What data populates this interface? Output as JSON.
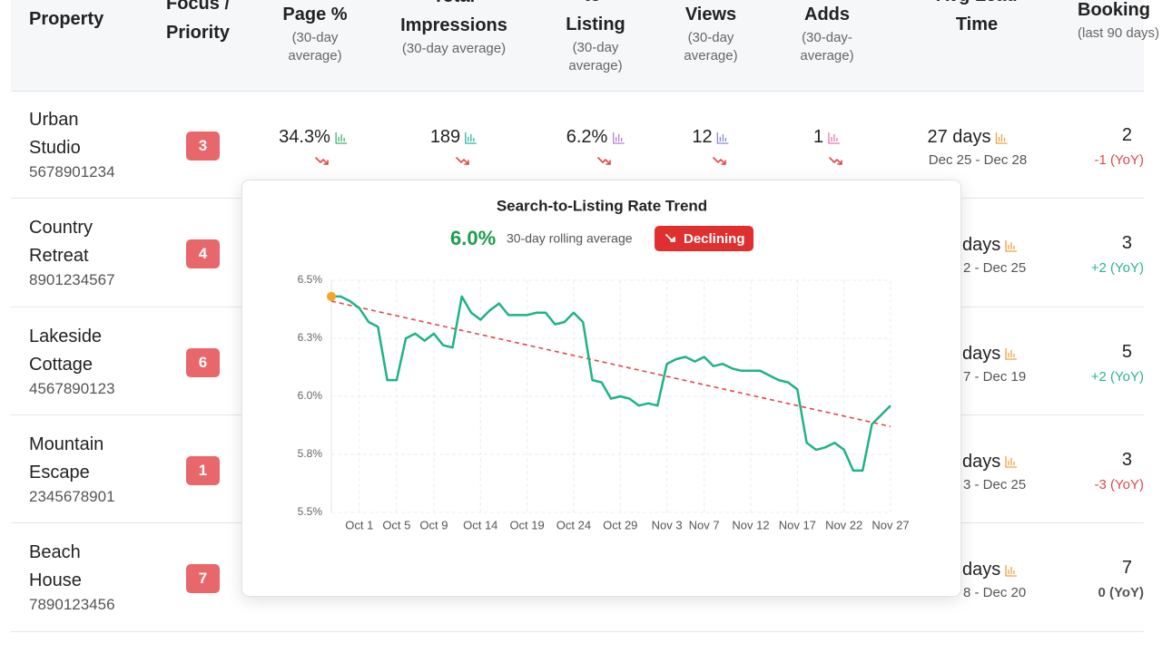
{
  "table": {
    "columns": [
      {
        "title": "Property"
      },
      {
        "title": "Focus / Priority"
      },
      {
        "title": "Page %",
        "sub": "(30-day average)"
      },
      {
        "title": "Total Impressions",
        "sub": "(30-day average)"
      },
      {
        "title": "to-Listing",
        "sub": "(30-day average)"
      },
      {
        "title": "Views",
        "sub": "(30-day average)"
      },
      {
        "title": "Adds",
        "sub": "(30-day-average)"
      },
      {
        "title": "Avg Lead Time"
      },
      {
        "title": "Booking",
        "sub": "(last 90 days)"
      }
    ],
    "rows": [
      {
        "name": "Urban Studio",
        "id": "5678901234",
        "priority": "3",
        "page": "34.3%",
        "impressions": "189",
        "listing": "6.2%",
        "views": "12",
        "adds": "1",
        "lead": "27 days",
        "lead_dates": "Dec 25 - Dec 28",
        "bookings": "2",
        "yoy": "-1 (YoY)",
        "yoy_color": "#e04848"
      },
      {
        "name": "Country Retreat",
        "id": "8901234567",
        "priority": "4",
        "lead": "days",
        "lead_dates": "2 - Dec 25",
        "bookings": "3",
        "yoy": "+2 (YoY)",
        "yoy_color": "#2bb58a"
      },
      {
        "name": "Lakeside Cottage",
        "id": "4567890123",
        "priority": "6",
        "lead": "days",
        "lead_dates": "7 - Dec 19",
        "bookings": "5",
        "yoy": "+2 (YoY)",
        "yoy_color": "#2bb58a"
      },
      {
        "name": "Mountain Escape",
        "id": "2345678901",
        "priority": "1",
        "lead": "days",
        "lead_dates": "3 - Dec 25",
        "bookings": "3",
        "yoy": "-3 (YoY)",
        "yoy_color": "#e04848"
      },
      {
        "name": "Beach House",
        "id": "7890123456",
        "priority": "7",
        "lead": "days",
        "lead_dates": "8 - Dec 20",
        "bookings": "7",
        "yoy": "0 (YoY)",
        "yoy_color": "#555555"
      }
    ]
  },
  "chart_data": {
    "type": "line",
    "title": "Search-to-Listing Rate Trend",
    "headline_value": "6.0%",
    "headline_note": "30-day rolling average",
    "status": "Declining",
    "categories": [
      null,
      null,
      null,
      "Oct 1",
      null,
      null,
      null,
      "Oct 5",
      null,
      null,
      null,
      "Oct 9",
      null,
      null,
      null,
      null,
      "Oct 14",
      null,
      null,
      null,
      null,
      "Oct 19",
      null,
      null,
      null,
      null,
      "Oct 24",
      null,
      null,
      null,
      null,
      "Oct 29",
      null,
      null,
      null,
      null,
      "Nov 3",
      null,
      null,
      null,
      "Nov 7",
      null,
      null,
      null,
      null,
      "Nov 12",
      null,
      null,
      null,
      null,
      "Nov 17",
      null,
      null,
      null,
      null,
      "Nov 22",
      null,
      null,
      null,
      null,
      "Nov 27"
    ],
    "series": [
      {
        "color": "#1db386",
        "values": [
          6.43,
          6.43,
          6.41,
          6.38,
          6.32,
          6.3,
          6.07,
          6.07,
          6.25,
          6.27,
          6.24,
          6.27,
          6.22,
          6.21,
          6.43,
          6.36,
          6.33,
          6.37,
          6.4,
          6.35,
          6.35,
          6.35,
          6.36,
          6.36,
          6.31,
          6.32,
          6.36,
          6.32,
          6.07,
          6.06,
          5.99,
          6.0,
          5.99,
          5.96,
          5.97,
          5.96,
          6.14,
          6.16,
          6.17,
          6.15,
          6.17,
          6.13,
          6.14,
          6.12,
          6.11,
          6.11,
          6.11,
          6.09,
          6.07,
          6.06,
          6.03,
          5.8,
          5.77,
          5.78,
          5.8,
          5.77,
          5.68,
          5.68,
          5.88,
          5.92,
          5.96
        ]
      }
    ],
    "trendline": {
      "color": "#e04848",
      "values": [
        6.41,
        5.87
      ]
    },
    "start_marker_color": "#f5a623",
    "ylim": [
      5.5,
      6.5
    ],
    "yticks": [
      {
        "value": 5.5,
        "label": "5.5%"
      },
      {
        "value": 5.75,
        "label": "5.8%"
      },
      {
        "value": 6.0,
        "label": "6.0%"
      },
      {
        "value": 6.25,
        "label": "6.3%"
      },
      {
        "value": 6.5,
        "label": "6.5%"
      }
    ],
    "grid": true
  }
}
